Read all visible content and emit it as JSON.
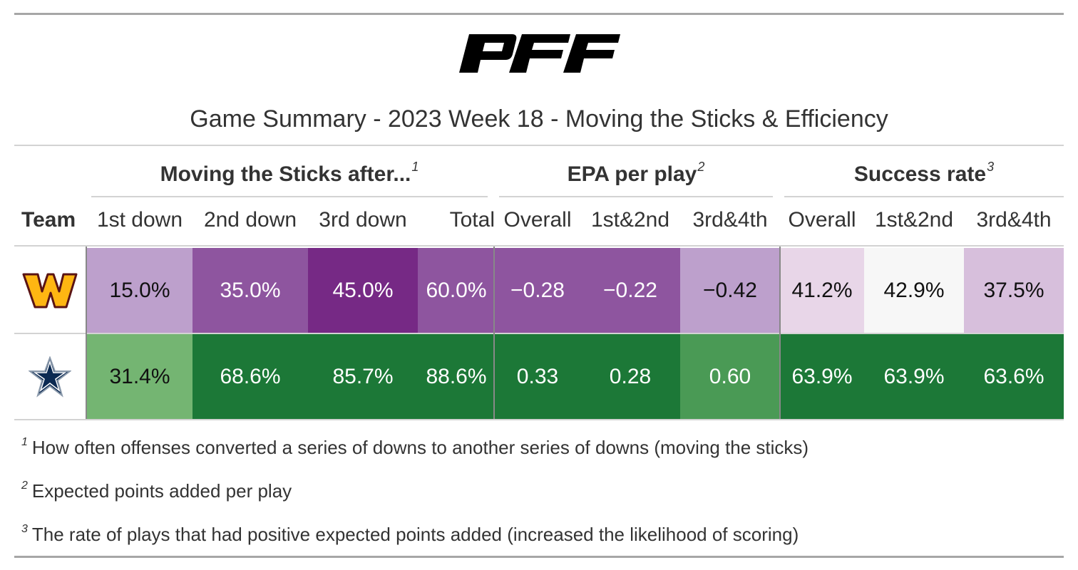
{
  "logo_text": "PFF",
  "title": "Game Summary - 2023 Week 18 - Moving the Sticks & Efficiency",
  "spanners": [
    {
      "label": "Moving the Sticks after...",
      "note": "1"
    },
    {
      "label": "EPA per play",
      "note": "2"
    },
    {
      "label": "Success rate",
      "note": "3"
    }
  ],
  "columns": {
    "team": "Team",
    "sticks": [
      "1st down",
      "2nd down",
      "3rd down",
      "Total"
    ],
    "epa": [
      "Overall",
      "1st&2nd",
      "3rd&4th"
    ],
    "success": [
      "Overall",
      "1st&2nd",
      "3rd&4th"
    ]
  },
  "rows": [
    {
      "team_icon": "washington-commanders-logo",
      "cells": [
        {
          "value": "15.0%",
          "bg": "#bda0cc",
          "fg": "#111111"
        },
        {
          "value": "35.0%",
          "bg": "#8e559f",
          "fg": "#ffffff"
        },
        {
          "value": "45.0%",
          "bg": "#762985",
          "fg": "#ffffff"
        },
        {
          "value": "60.0%",
          "bg": "#8e559f",
          "fg": "#ffffff"
        },
        {
          "value": "−0.28",
          "bg": "#8e559f",
          "fg": "#ffffff"
        },
        {
          "value": "−0.22",
          "bg": "#8e559f",
          "fg": "#ffffff"
        },
        {
          "value": "−0.42",
          "bg": "#bda0cc",
          "fg": "#111111"
        },
        {
          "value": "41.2%",
          "bg": "#e8d6e8",
          "fg": "#111111"
        },
        {
          "value": "42.9%",
          "bg": "#f7f7f7",
          "fg": "#111111"
        },
        {
          "value": "37.5%",
          "bg": "#d7bfdc",
          "fg": "#111111"
        }
      ]
    },
    {
      "team_icon": "dallas-cowboys-star-logo",
      "cells": [
        {
          "value": "31.4%",
          "bg": "#74b572",
          "fg": "#111111"
        },
        {
          "value": "68.6%",
          "bg": "#1c7837",
          "fg": "#ffffff"
        },
        {
          "value": "85.7%",
          "bg": "#1c7837",
          "fg": "#ffffff"
        },
        {
          "value": "88.6%",
          "bg": "#1c7837",
          "fg": "#ffffff"
        },
        {
          "value": "0.33",
          "bg": "#1c7837",
          "fg": "#ffffff"
        },
        {
          "value": "0.28",
          "bg": "#1c7837",
          "fg": "#ffffff"
        },
        {
          "value": "0.60",
          "bg": "#4a9a55",
          "fg": "#ffffff"
        },
        {
          "value": "63.9%",
          "bg": "#1c7837",
          "fg": "#ffffff"
        },
        {
          "value": "63.9%",
          "bg": "#1c7837",
          "fg": "#ffffff"
        },
        {
          "value": "63.6%",
          "bg": "#1c7837",
          "fg": "#ffffff"
        }
      ]
    }
  ],
  "footnotes": [
    {
      "mark": "1",
      "text": "How often offenses converted a series of downs to another series of downs (moving the sticks)"
    },
    {
      "mark": "2",
      "text": "Expected points added per play"
    },
    {
      "mark": "3",
      "text": "The rate of plays that had positive expected points added (increased the likelihood of scoring)"
    }
  ]
}
